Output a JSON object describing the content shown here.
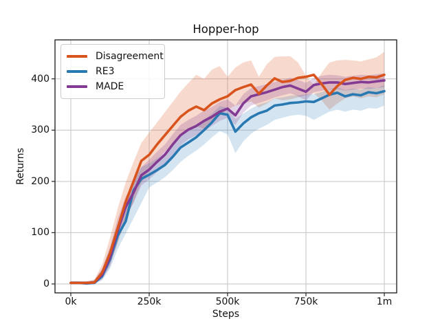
{
  "title": "Hopper-hop",
  "axes": {
    "xlabel": "Steps",
    "ylabel": "Returns",
    "x_ticks": [
      "0k",
      "250k",
      "500k",
      "750k",
      "1m"
    ],
    "x_tick_values": [
      0,
      250,
      500,
      750,
      1000
    ],
    "y_ticks": [
      "0",
      "100",
      "200",
      "300",
      "400"
    ],
    "y_tick_values": [
      0,
      100,
      200,
      300,
      400
    ]
  },
  "legend": [
    {
      "label": "Disagreement",
      "color": "#d9541d"
    },
    {
      "label": "RE3",
      "color": "#2878b2"
    },
    {
      "label": "MADE",
      "color": "#833a93"
    }
  ],
  "chart_data": {
    "type": "line",
    "title": "Hopper-hop",
    "xlabel": "Steps",
    "ylabel": "Returns",
    "x_units": "steps (thousands)",
    "grid": true,
    "legend_position": "upper left",
    "xlim": [
      -50,
      1040
    ],
    "ylim": [
      -17,
      476
    ],
    "x": [
      0,
      25,
      50,
      75,
      100,
      125,
      150,
      175,
      200,
      225,
      250,
      275,
      300,
      325,
      350,
      375,
      400,
      425,
      450,
      475,
      500,
      525,
      550,
      575,
      600,
      625,
      650,
      675,
      700,
      725,
      750,
      775,
      800,
      825,
      850,
      875,
      900,
      925,
      950,
      975,
      1000
    ],
    "series": [
      {
        "name": "Disagreement",
        "color": "#d9541d",
        "band_color": "rgba(217,84,29,0.22)",
        "values": [
          2,
          2,
          2,
          3,
          22,
          60,
          110,
          160,
          200,
          240,
          252,
          272,
          290,
          308,
          326,
          338,
          346,
          339,
          352,
          360,
          366,
          378,
          384,
          389,
          371,
          387,
          401,
          394,
          396,
          402,
          404,
          408,
          390,
          369,
          386,
          398,
          402,
          400,
          404,
          403,
          408
        ],
        "band_upper": [
          5,
          5,
          5,
          8,
          38,
          90,
          148,
          198,
          238,
          275,
          295,
          315,
          335,
          355,
          375,
          392,
          408,
          400,
          418,
          425,
          404,
          422,
          432,
          436,
          404,
          428,
          443,
          444,
          444,
          432,
          406,
          388,
          412,
          432,
          436,
          437,
          436,
          434,
          438,
          442,
          453
        ],
        "band_lower": [
          0,
          0,
          0,
          1,
          12,
          38,
          80,
          125,
          160,
          198,
          220,
          242,
          258,
          274,
          288,
          298,
          308,
          302,
          315,
          328,
          340,
          348,
          352,
          356,
          344,
          352,
          362,
          358,
          360,
          364,
          368,
          372,
          358,
          340,
          352,
          362,
          366,
          362,
          366,
          364,
          370
        ]
      },
      {
        "name": "RE3",
        "color": "#2878b2",
        "band_color": "rgba(40,120,178,0.20)",
        "values": [
          2,
          2,
          1,
          2,
          15,
          48,
          95,
          122,
          182,
          205,
          213,
          222,
          232,
          248,
          266,
          276,
          286,
          300,
          315,
          333,
          330,
          297,
          313,
          325,
          333,
          338,
          348,
          350,
          353,
          354,
          356,
          355,
          362,
          369,
          373,
          366,
          370,
          368,
          374,
          372,
          376
        ],
        "band_upper": [
          5,
          5,
          4,
          6,
          28,
          68,
          118,
          148,
          205,
          228,
          235,
          245,
          255,
          270,
          288,
          298,
          308,
          320,
          332,
          347,
          344,
          322,
          332,
          342,
          350,
          354,
          362,
          364,
          367,
          368,
          370,
          370,
          374,
          380,
          384,
          378,
          381,
          379,
          384,
          382,
          388
        ],
        "band_lower": [
          0,
          0,
          0,
          0,
          7,
          30,
          68,
          98,
          128,
          158,
          188,
          198,
          208,
          222,
          238,
          250,
          260,
          272,
          286,
          298,
          292,
          255,
          278,
          293,
          303,
          310,
          320,
          324,
          328,
          330,
          328,
          320,
          328,
          336,
          340,
          336,
          340,
          338,
          343,
          342,
          348
        ]
      },
      {
        "name": "MADE",
        "color": "#833a93",
        "band_color": "rgba(131,58,147,0.22)",
        "values": [
          2,
          2,
          2,
          3,
          18,
          52,
          105,
          150,
          178,
          212,
          223,
          238,
          252,
          272,
          290,
          301,
          308,
          318,
          326,
          336,
          342,
          329,
          352,
          366,
          370,
          374,
          379,
          384,
          387,
          381,
          375,
          388,
          391,
          393,
          393,
          390,
          392,
          394,
          393,
          395,
          397
        ],
        "band_upper": [
          5,
          5,
          5,
          8,
          30,
          72,
          128,
          170,
          198,
          228,
          242,
          258,
          272,
          292,
          310,
          320,
          328,
          338,
          345,
          355,
          360,
          348,
          370,
          382,
          386,
          390,
          394,
          398,
          402,
          398,
          392,
          402,
          406,
          408,
          407,
          404,
          406,
          408,
          407,
          409,
          411
        ],
        "band_lower": [
          0,
          0,
          0,
          1,
          9,
          34,
          84,
          130,
          158,
          192,
          204,
          218,
          232,
          252,
          270,
          282,
          290,
          298,
          308,
          318,
          324,
          310,
          334,
          348,
          353,
          358,
          364,
          368,
          372,
          366,
          358,
          374,
          377,
          379,
          380,
          377,
          379,
          381,
          380,
          382,
          384
        ]
      }
    ]
  }
}
